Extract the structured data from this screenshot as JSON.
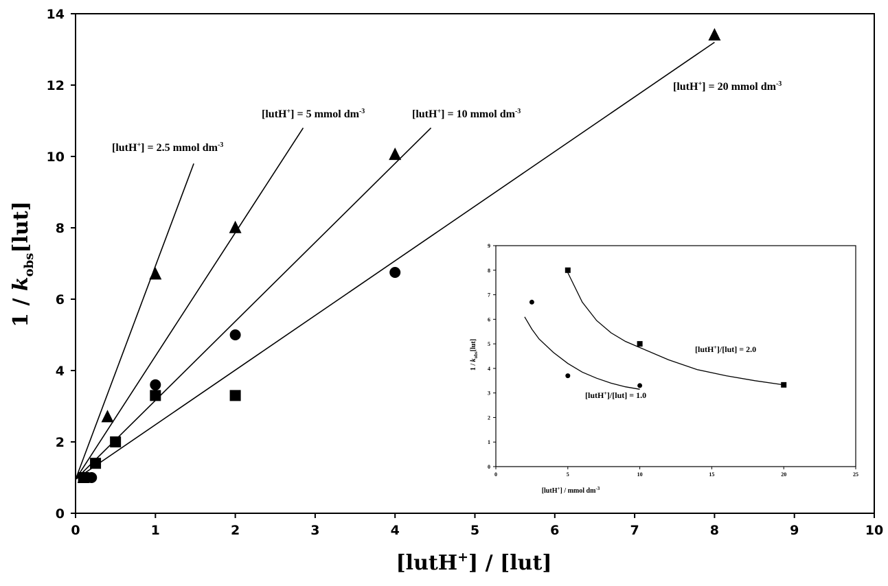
{
  "chart_data": [
    {
      "type": "scatter",
      "xlabel": "[lutH+] / [lut]",
      "ylabel": "1 / k_obs[lut]",
      "xlim": [
        0,
        10
      ],
      "ylim": [
        0,
        14
      ],
      "xticks": [
        0,
        1,
        2,
        3,
        4,
        5,
        6,
        7,
        8,
        9,
        10
      ],
      "yticks": [
        0,
        2,
        4,
        6,
        8,
        10,
        12,
        14
      ],
      "grid": false,
      "series": [
        {
          "marker": "triangle",
          "points": [
            [
              0.1,
              1.0
            ],
            [
              0.4,
              2.7
            ],
            [
              1,
              6.7
            ],
            [
              2,
              8.0
            ],
            [
              4,
              10.05
            ],
            [
              8,
              13.4
            ]
          ]
        },
        {
          "marker": "circle",
          "points": [
            [
              0.1,
              1.0
            ],
            [
              0.15,
              1.0
            ],
            [
              0.2,
              1.0
            ],
            [
              1,
              3.6
            ],
            [
              2,
              5.0
            ],
            [
              4,
              6.75
            ]
          ]
        },
        {
          "marker": "square",
          "points": [
            [
              0.1,
              1.0
            ],
            [
              0.25,
              1.4
            ],
            [
              0.5,
              2.0
            ],
            [
              1,
              3.3
            ],
            [
              2,
              3.3
            ]
          ]
        }
      ],
      "fit_lines": [
        {
          "label": "[lutH+] = 2.5 mmol dm-3",
          "x": [
            0,
            1.48
          ],
          "y": [
            0.95,
            9.8
          ]
        },
        {
          "label": "[lutH+] = 5 mmol dm-3",
          "x": [
            0,
            2.85
          ],
          "y": [
            0.95,
            10.8
          ]
        },
        {
          "label": "[lutH+] = 10 mmol dm-3",
          "x": [
            0,
            4.45
          ],
          "y": [
            0.95,
            10.8
          ]
        },
        {
          "label": "[lutH+] = 20 mmol dm-3",
          "x": [
            0,
            8.0
          ],
          "y": [
            0.95,
            13.2
          ]
        }
      ],
      "annotations": {
        "a25": {
          "pre": "[lutH",
          "sup": "+",
          "mid": "] = 2.5 mmol dm",
          "exp": "-3"
        },
        "a5": {
          "pre": "[lutH",
          "sup": "+",
          "mid": "] = 5 mmol dm",
          "exp": "-3"
        },
        "a10": {
          "pre": "[lutH",
          "sup": "+",
          "mid": "] = 10 mmol dm",
          "exp": "-3"
        },
        "a20": {
          "pre": "[lutH",
          "sup": "+",
          "mid": "] = 20 mmol dm",
          "exp": "-3"
        }
      },
      "xlabel_parts": {
        "pre": "[lutH",
        "sup": "+",
        "post": "] / [lut]"
      },
      "ylabel_parts": {
        "pre": "1 / ",
        "k": "k",
        "sub": "obs",
        "post": "[lut]"
      }
    },
    {
      "type": "scatter",
      "inset": true,
      "xlabel": "[lutH+] / mmol dm-3",
      "ylabel": "1 / k_obs[lut]",
      "xlim": [
        0,
        25
      ],
      "ylim": [
        0,
        9
      ],
      "xticks": [
        0,
        5,
        10,
        15,
        20,
        25
      ],
      "yticks": [
        0,
        1,
        2,
        3,
        4,
        5,
        6,
        7,
        8,
        9
      ],
      "grid": false,
      "series": [
        {
          "label": "[lutH+]/[lut] = 1.0",
          "marker": "circle",
          "points": [
            [
              2.5,
              6.7
            ],
            [
              5,
              3.7
            ],
            [
              10,
              3.3
            ]
          ],
          "fit_curve": {
            "x": [
              2.0,
              2.5,
              3,
              4,
              5,
              6,
              7,
              8,
              9,
              10
            ],
            "y": [
              6.1,
              5.6,
              5.2,
              4.65,
              4.2,
              3.85,
              3.6,
              3.4,
              3.25,
              3.15
            ]
          }
        },
        {
          "label": "[lutH+]/[lut] = 2.0",
          "marker": "square",
          "points": [
            [
              5,
              8.0
            ],
            [
              10,
              5.0
            ],
            [
              20,
              3.33
            ]
          ],
          "fit_curve": {
            "x": [
              5,
              6,
              7,
              8,
              9,
              10,
              12,
              14,
              16,
              18,
              20
            ],
            "y": [
              7.9,
              6.7,
              5.95,
              5.45,
              5.1,
              4.85,
              4.35,
              3.95,
              3.7,
              3.5,
              3.33
            ]
          }
        }
      ],
      "annotations": {
        "r2": {
          "pre": "[lutH",
          "sup": "+",
          "post": "]/[lut] = 2.0"
        },
        "r1": {
          "pre": "[lutH",
          "sup": "+",
          "post": "]/[lut] = 1.0"
        }
      },
      "xlabel_parts": {
        "pre": "[lutH",
        "sup": "+",
        "mid": "] / mmol dm",
        "exp": "-3"
      },
      "ylabel_parts": {
        "pre": "1 / ",
        "k": "k",
        "sub": "obs",
        "post": "[lut]"
      }
    }
  ]
}
